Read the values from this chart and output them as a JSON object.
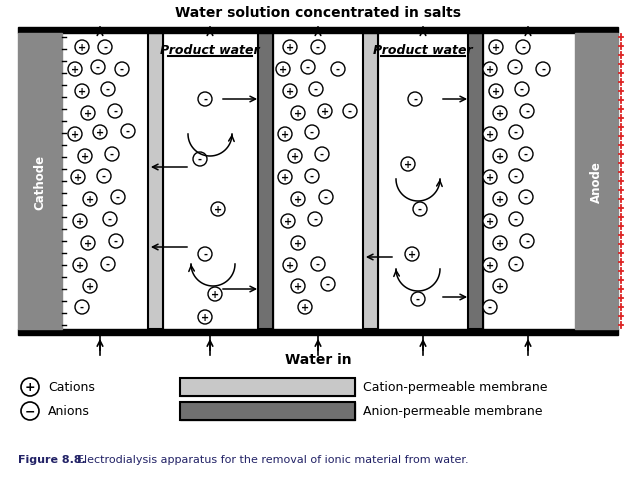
{
  "title": "Water solution concentrated in salts",
  "water_in_label": "Water in",
  "product_water_label": "Product water",
  "cathode_label": "Cathode",
  "anode_label": "Anode",
  "figure_caption_bold": "Figure 8.8.",
  "figure_caption_rest": "  Electrodialysis apparatus for the removal of ionic material from water.",
  "legend_cation": "Cations",
  "legend_anion": "Anions",
  "legend_cation_membrane": "Cation-permeable membrane",
  "legend_anion_membrane": "Anion-permeable membrane",
  "bg_color": "#ffffff",
  "electrode_color": "#888888",
  "membrane_light_color": "#c8c8c8",
  "membrane_dark_color": "#707070",
  "anode_stripe_color": "#dd2222"
}
